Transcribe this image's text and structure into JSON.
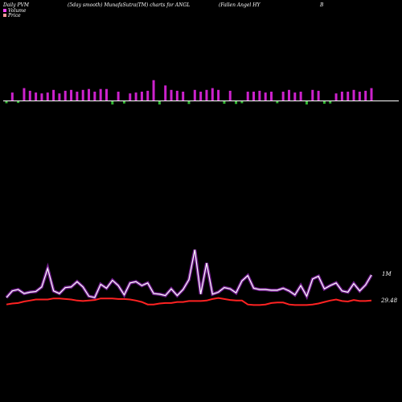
{
  "header": {
    "left": "Daily PVM",
    "center": "(5day smooth) MunafaSutra(TM) charts for ANGL",
    "right": "(Fallen Angel HY",
    "far_right": "B"
  },
  "legend": [
    {
      "label": "Volume",
      "color": "#ff44ff"
    },
    {
      "label": "Price",
      "color": "#ff9999"
    }
  ],
  "colors": {
    "background": "#000000",
    "volume_up": "#cc22cc",
    "volume_down": "#33bb33",
    "volume_line": "#cc33ff",
    "price_line": "#ff2222",
    "baseline": "#ffffff"
  },
  "chart_data": {
    "type": "bar",
    "title": "(5day smooth) MunafaSutra(TM) charts for ANGL",
    "xlabel": "",
    "ylabel": "",
    "series": [
      {
        "name": "Volume",
        "values": [
          0.8,
          0.9,
          0.7,
          1.4,
          1.1,
          0.9,
          0.8,
          0.9,
          1.2,
          0.8,
          1.1,
          1.2,
          1.0,
          1.2,
          1.3,
          1.0,
          1.3,
          1.3,
          1.3,
          1.0,
          0.9,
          0.8,
          0.9,
          1.0,
          1.1,
          2.3,
          1.3,
          1.7,
          1.2,
          1.1,
          1.0,
          1.1,
          1.2,
          1.0,
          1.2,
          1.4,
          1.2,
          1.0,
          1.1,
          1.1,
          0.8,
          1.0,
          1.0,
          1.1,
          0.9,
          1.0,
          0.8,
          1.0,
          1.2,
          0.9,
          1.0,
          1.3,
          1.2,
          1.1,
          1.0,
          0.9,
          0.8,
          1.0,
          1.0,
          1.2,
          1.0,
          1.1,
          1.4
        ],
        "direction": [
          "d",
          "u",
          "d",
          "u",
          "u",
          "u",
          "u",
          "u",
          "u",
          "u",
          "u",
          "u",
          "u",
          "u",
          "u",
          "u",
          "u",
          "u",
          "d",
          "u",
          "d",
          "u",
          "u",
          "u",
          "u",
          "u",
          "d",
          "u",
          "u",
          "u",
          "u",
          "d",
          "u",
          "u",
          "u",
          "u",
          "u",
          "d",
          "u",
          "d",
          "d",
          "u",
          "u",
          "u",
          "u",
          "u",
          "d",
          "u",
          "u",
          "u",
          "u",
          "d",
          "u",
          "u",
          "d",
          "d",
          "u",
          "u",
          "u",
          "u",
          "u",
          "u",
          "u"
        ],
        "smoothed": [
          0.3,
          0.8,
          0.9,
          0.6,
          0.7,
          0.75,
          1.1,
          2.5,
          0.8,
          0.6,
          1.05,
          1.1,
          1.5,
          1.1,
          0.4,
          0.3,
          1.3,
          1.0,
          1.6,
          1.2,
          0.5,
          1.4,
          1.5,
          1.2,
          1.4,
          0.6,
          0.55,
          0.45,
          0.95,
          0.45,
          0.9,
          1.65,
          3.9,
          0.55,
          2.9,
          0.55,
          0.7,
          1.05,
          0.95,
          0.65,
          1.55,
          1.95,
          1.0,
          0.9,
          0.9,
          0.85,
          0.85,
          1.0,
          0.8,
          0.5,
          1.2,
          0.4,
          1.7,
          1.9,
          0.95,
          1.2,
          1.4,
          0.8,
          0.7,
          1.35,
          0.8,
          1.25,
          2.0
        ]
      },
      {
        "name": "Price",
        "values": [
          29.3,
          29.32,
          29.33,
          29.36,
          29.38,
          29.4,
          29.4,
          29.4,
          29.42,
          29.42,
          29.41,
          29.4,
          29.38,
          29.37,
          29.38,
          29.39,
          29.42,
          29.42,
          29.42,
          29.41,
          29.41,
          29.4,
          29.38,
          29.35,
          29.3,
          29.3,
          29.32,
          29.33,
          29.33,
          29.35,
          29.35,
          29.37,
          29.37,
          29.37,
          29.38,
          29.41,
          29.43,
          29.41,
          29.39,
          29.38,
          29.38,
          29.3,
          29.29,
          29.29,
          29.3,
          29.33,
          29.34,
          29.34,
          29.3,
          29.29,
          29.29,
          29.29,
          29.3,
          29.32,
          29.35,
          29.38,
          29.4,
          29.37,
          29.36,
          29.39,
          29.37,
          29.37,
          29.38
        ]
      }
    ],
    "last_volume_label": "1M",
    "last_price_label": "29.48"
  }
}
